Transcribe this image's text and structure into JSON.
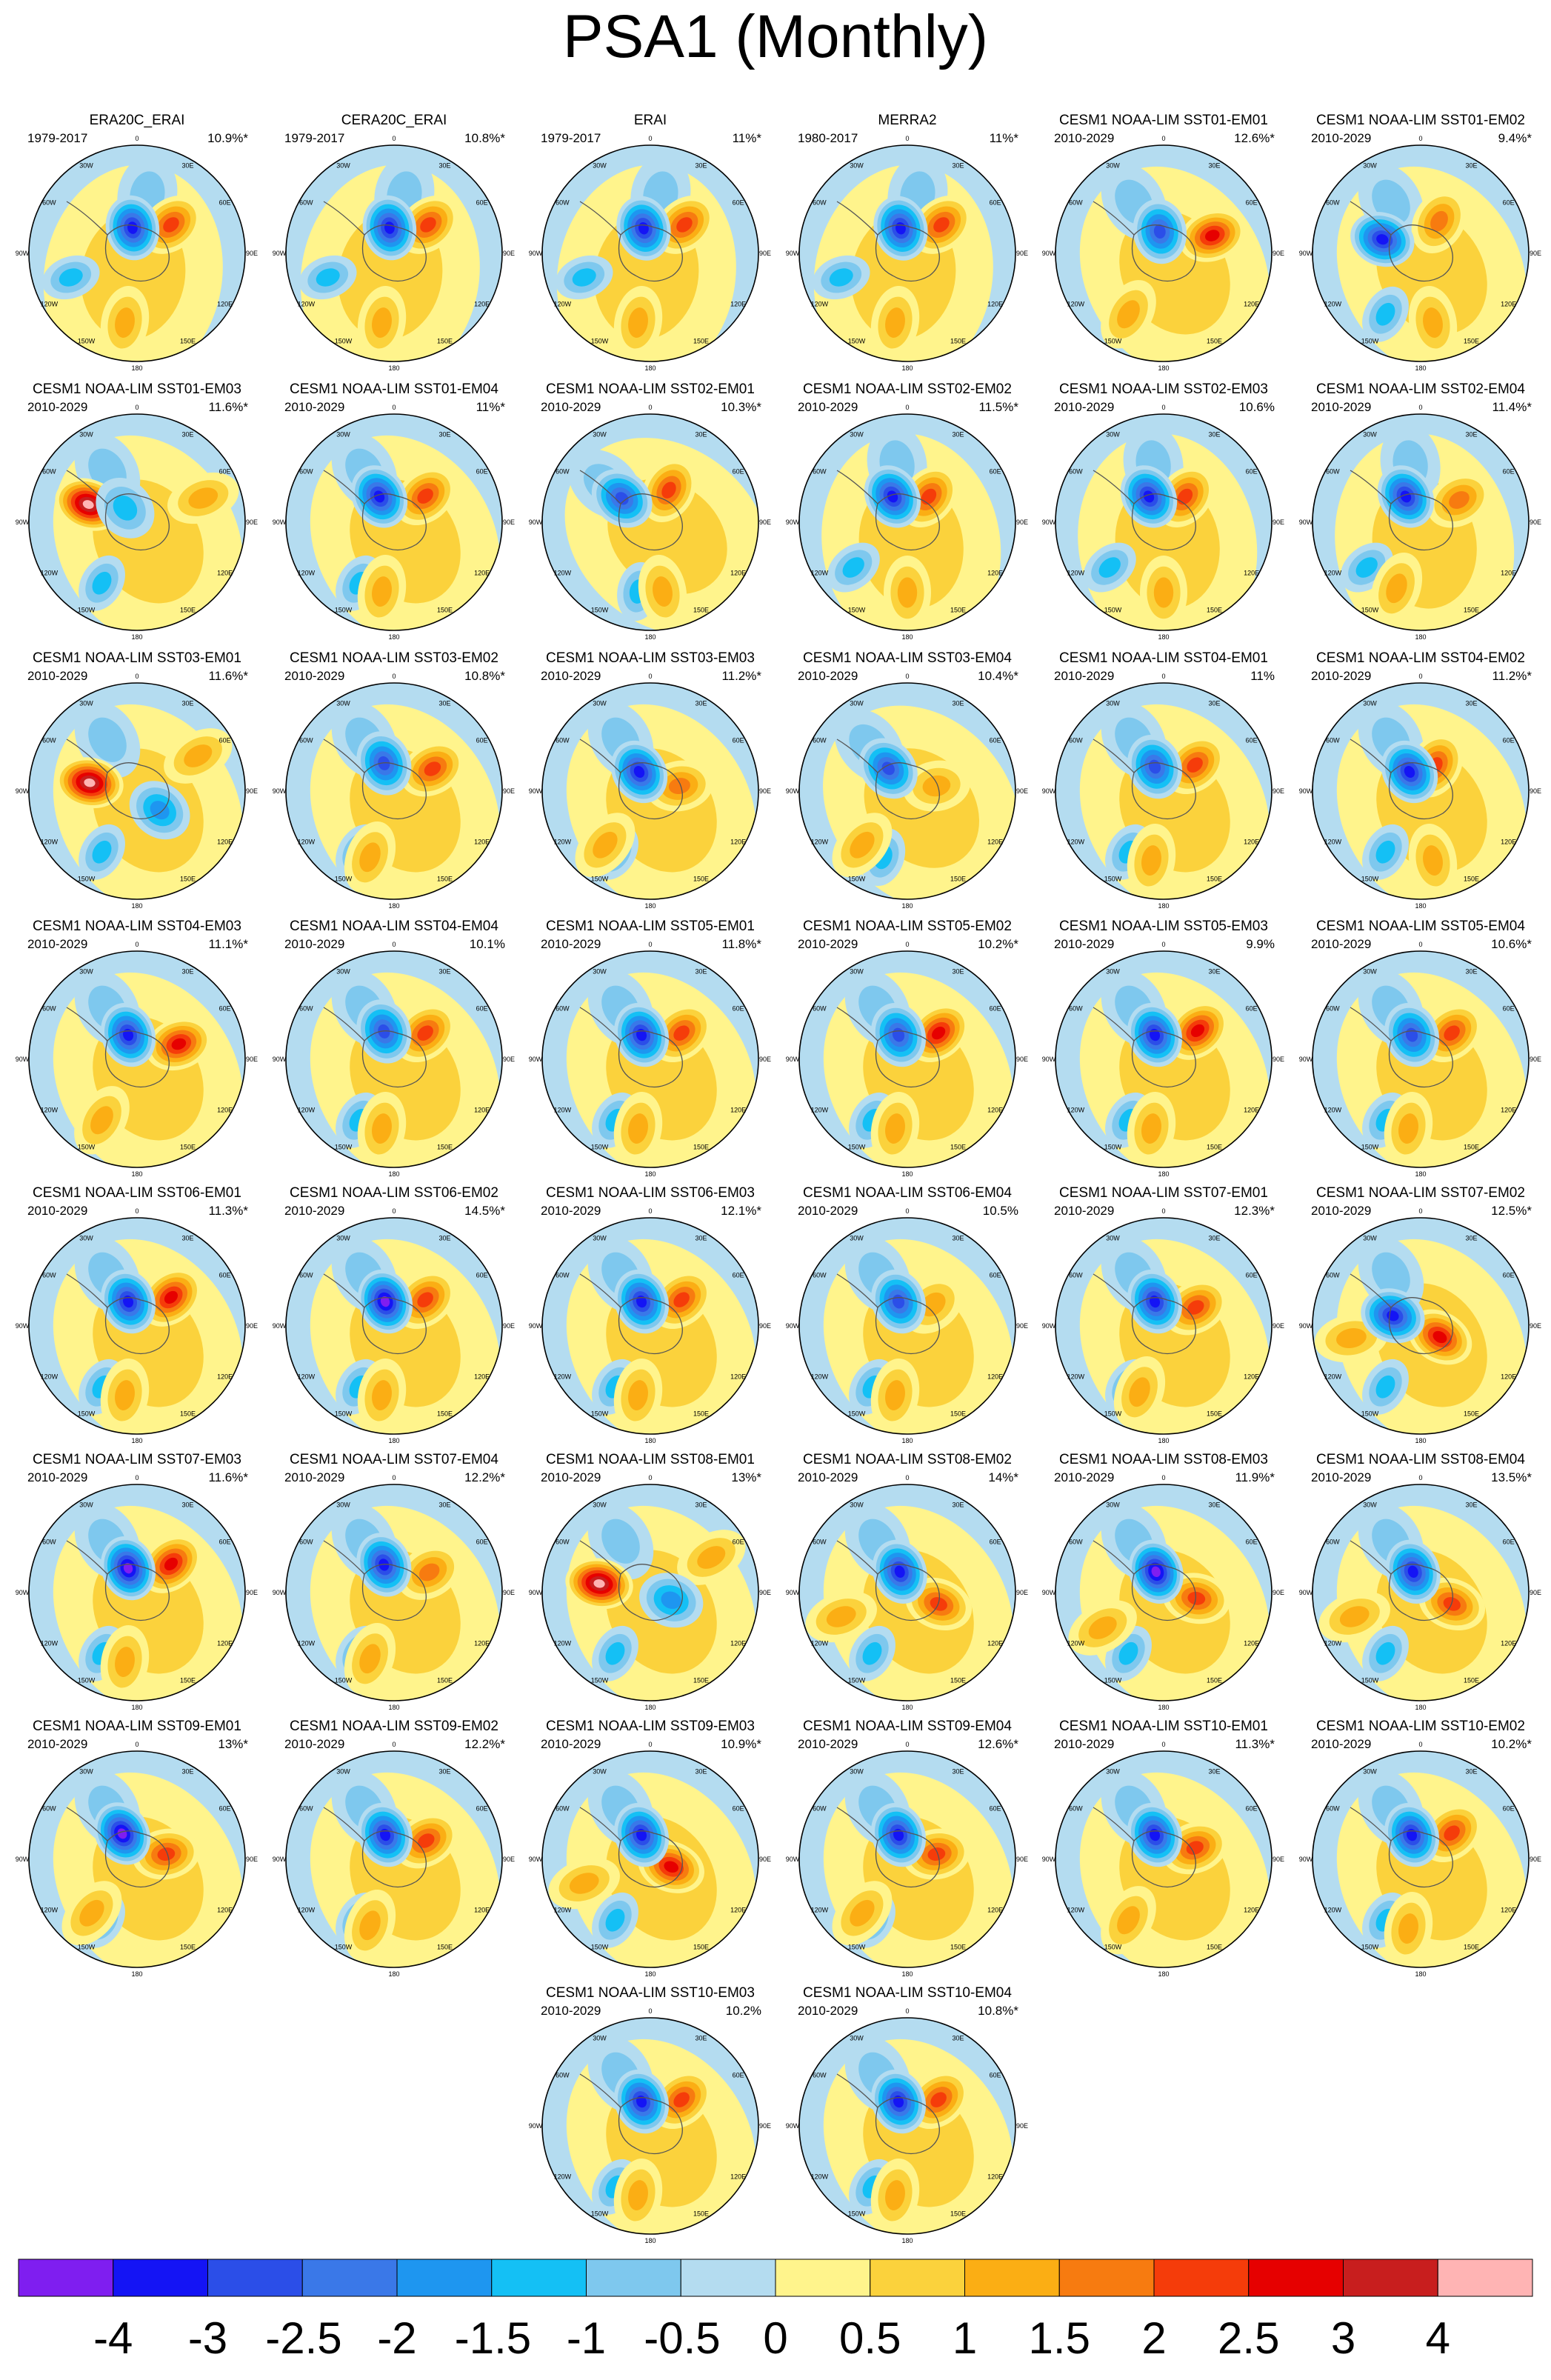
{
  "title": "PSA1 (Monthly)",
  "map_labels": {
    "lon_0": "0",
    "lon_30w": "30W",
    "lon_30e": "30E",
    "lon_60w": "60W",
    "lon_60e": "60E",
    "lon_90w": "90W",
    "lon_90e": "90E",
    "lon_120w": "120W",
    "lon_120e": "120E",
    "lon_150w": "150W",
    "lon_150e": "150E",
    "lon_180": "180"
  },
  "panels": [
    {
      "title": "ERA20C_ERAI",
      "period": "1979-2017",
      "pct": "10.9%*"
    },
    {
      "title": "CERA20C_ERAI",
      "period": "1979-2017",
      "pct": "10.8%*"
    },
    {
      "title": "ERAI",
      "period": "1979-2017",
      "pct": "11%*"
    },
    {
      "title": "MERRA2",
      "period": "1980-2017",
      "pct": "11%*"
    },
    {
      "title": "CESM1 NOAA-LIM SST01-EM01",
      "period": "2010-2029",
      "pct": "12.6%*"
    },
    {
      "title": "CESM1 NOAA-LIM SST01-EM02",
      "period": "2010-2029",
      "pct": "9.4%*"
    },
    {
      "title": "CESM1 NOAA-LIM SST01-EM03",
      "period": "2010-2029",
      "pct": "11.6%*"
    },
    {
      "title": "CESM1 NOAA-LIM SST01-EM04",
      "period": "2010-2029",
      "pct": "11%*"
    },
    {
      "title": "CESM1 NOAA-LIM SST02-EM01",
      "period": "2010-2029",
      "pct": "10.3%*"
    },
    {
      "title": "CESM1 NOAA-LIM SST02-EM02",
      "period": "2010-2029",
      "pct": "11.5%*"
    },
    {
      "title": "CESM1 NOAA-LIM SST02-EM03",
      "period": "2010-2029",
      "pct": "10.6%"
    },
    {
      "title": "CESM1 NOAA-LIM SST02-EM04",
      "period": "2010-2029",
      "pct": "11.4%*"
    },
    {
      "title": "CESM1 NOAA-LIM SST03-EM01",
      "period": "2010-2029",
      "pct": "11.6%*"
    },
    {
      "title": "CESM1 NOAA-LIM SST03-EM02",
      "period": "2010-2029",
      "pct": "10.8%*"
    },
    {
      "title": "CESM1 NOAA-LIM SST03-EM03",
      "period": "2010-2029",
      "pct": "11.2%*"
    },
    {
      "title": "CESM1 NOAA-LIM SST03-EM04",
      "period": "2010-2029",
      "pct": "10.4%*"
    },
    {
      "title": "CESM1 NOAA-LIM SST04-EM01",
      "period": "2010-2029",
      "pct": "11%"
    },
    {
      "title": "CESM1 NOAA-LIM SST04-EM02",
      "period": "2010-2029",
      "pct": "11.2%*"
    },
    {
      "title": "CESM1 NOAA-LIM SST04-EM03",
      "period": "2010-2029",
      "pct": "11.1%*"
    },
    {
      "title": "CESM1 NOAA-LIM SST04-EM04",
      "period": "2010-2029",
      "pct": "10.1%"
    },
    {
      "title": "CESM1 NOAA-LIM SST05-EM01",
      "period": "2010-2029",
      "pct": "11.8%*"
    },
    {
      "title": "CESM1 NOAA-LIM SST05-EM02",
      "period": "2010-2029",
      "pct": "10.2%*"
    },
    {
      "title": "CESM1 NOAA-LIM SST05-EM03",
      "period": "2010-2029",
      "pct": "9.9%"
    },
    {
      "title": "CESM1 NOAA-LIM SST05-EM04",
      "period": "2010-2029",
      "pct": "10.6%*"
    },
    {
      "title": "CESM1 NOAA-LIM SST06-EM01",
      "period": "2010-2029",
      "pct": "11.3%*"
    },
    {
      "title": "CESM1 NOAA-LIM SST06-EM02",
      "period": "2010-2029",
      "pct": "14.5%*"
    },
    {
      "title": "CESM1 NOAA-LIM SST06-EM03",
      "period": "2010-2029",
      "pct": "12.1%*"
    },
    {
      "title": "CESM1 NOAA-LIM SST06-EM04",
      "period": "2010-2029",
      "pct": "10.5%"
    },
    {
      "title": "CESM1 NOAA-LIM SST07-EM01",
      "period": "2010-2029",
      "pct": "12.3%*"
    },
    {
      "title": "CESM1 NOAA-LIM SST07-EM02",
      "period": "2010-2029",
      "pct": "12.5%*"
    },
    {
      "title": "CESM1 NOAA-LIM SST07-EM03",
      "period": "2010-2029",
      "pct": "11.6%*"
    },
    {
      "title": "CESM1 NOAA-LIM SST07-EM04",
      "period": "2010-2029",
      "pct": "12.2%*"
    },
    {
      "title": "CESM1 NOAA-LIM SST08-EM01",
      "period": "2010-2029",
      "pct": "13%*"
    },
    {
      "title": "CESM1 NOAA-LIM SST08-EM02",
      "period": "2010-2029",
      "pct": "14%*"
    },
    {
      "title": "CESM1 NOAA-LIM SST08-EM03",
      "period": "2010-2029",
      "pct": "11.9%*"
    },
    {
      "title": "CESM1 NOAA-LIM SST08-EM04",
      "period": "2010-2029",
      "pct": "13.5%*"
    },
    {
      "title": "CESM1 NOAA-LIM SST09-EM01",
      "period": "2010-2029",
      "pct": "13%*"
    },
    {
      "title": "CESM1 NOAA-LIM SST09-EM02",
      "period": "2010-2029",
      "pct": "12.2%*"
    },
    {
      "title": "CESM1 NOAA-LIM SST09-EM03",
      "period": "2010-2029",
      "pct": "10.9%*"
    },
    {
      "title": "CESM1 NOAA-LIM SST09-EM04",
      "period": "2010-2029",
      "pct": "12.6%*"
    },
    {
      "title": "CESM1 NOAA-LIM SST10-EM01",
      "period": "2010-2029",
      "pct": "11.3%*"
    },
    {
      "title": "CESM1 NOAA-LIM SST10-EM02",
      "period": "2010-2029",
      "pct": "10.2%*"
    },
    {
      "title": "CESM1 NOAA-LIM SST10-EM03",
      "period": "2010-2029",
      "pct": "10.2%"
    },
    {
      "title": "CESM1 NOAA-LIM SST10-EM04",
      "period": "2010-2029",
      "pct": "10.8%*"
    }
  ],
  "colorbar": {
    "colors": [
      "#7f1ef0",
      "#1414f5",
      "#2b4ee8",
      "#3a78e8",
      "#1e96f0",
      "#14c0f5",
      "#7ec8ee",
      "#b4dcf0",
      "#fff48c",
      "#fbd23c",
      "#fbae14",
      "#f77b10",
      "#f53c0a",
      "#e60000",
      "#c81e1e",
      "#ffb4b4"
    ],
    "ticks": [
      "-4",
      "-3",
      "-2.5",
      "-2",
      "-1.5",
      "-1",
      "-0.5",
      "0",
      "0.5",
      "1",
      "1.5",
      "2",
      "2.5",
      "3",
      "4"
    ]
  }
}
